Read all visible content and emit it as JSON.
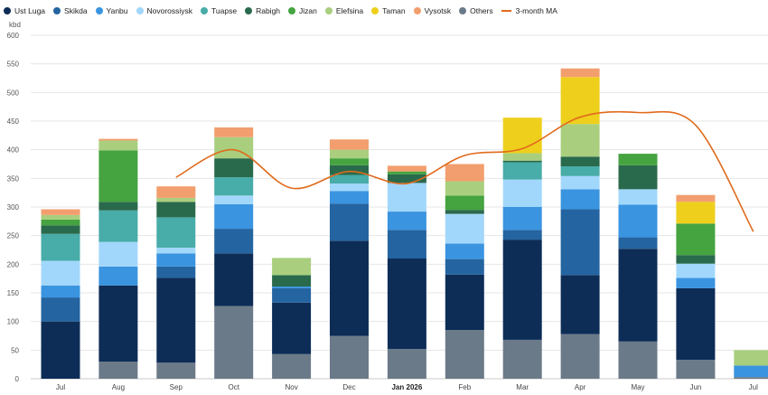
{
  "chart_data": {
    "type": "bar",
    "stacked": true,
    "ylabel": "kbd",
    "ylim": [
      0,
      600
    ],
    "yticks": [
      0,
      50,
      100,
      150,
      200,
      250,
      300,
      350,
      400,
      450,
      500,
      550,
      600
    ],
    "grid": true,
    "legend_position": "top-left",
    "categories": [
      "Jul",
      "Aug",
      "Sep",
      "Oct",
      "Nov",
      "Dec",
      "Jan 2026",
      "Feb",
      "Mar",
      "Apr",
      "May",
      "Jun",
      "Jul"
    ],
    "bold_categories": [
      "Jan 2026"
    ],
    "series": [
      {
        "name": "Others",
        "color": "#6b7a89",
        "values": [
          0,
          30,
          28,
          127,
          43,
          75,
          52,
          85,
          68,
          78,
          65,
          33,
          3
        ]
      },
      {
        "name": "Ust Luga",
        "color": "#0d2d57",
        "values": [
          100,
          133,
          148,
          92,
          90,
          166,
          158,
          97,
          175,
          103,
          162,
          125,
          0
        ]
      },
      {
        "name": "Skikda",
        "color": "#2464a0",
        "values": [
          42,
          0,
          20,
          43,
          25,
          65,
          50,
          27,
          17,
          115,
          20,
          0,
          0
        ]
      },
      {
        "name": "Yanbu",
        "color": "#3a94e0",
        "values": [
          21,
          33,
          23,
          43,
          3,
          22,
          32,
          27,
          40,
          35,
          57,
          18,
          20
        ]
      },
      {
        "name": "Novorossiysk",
        "color": "#a2d7fc",
        "values": [
          43,
          43,
          10,
          15,
          0,
          13,
          50,
          52,
          48,
          23,
          27,
          25,
          0
        ]
      },
      {
        "name": "Tuapse",
        "color": "#48aca8",
        "values": [
          47,
          55,
          53,
          32,
          0,
          15,
          0,
          0,
          30,
          17,
          0,
          0,
          0
        ]
      },
      {
        "name": "Rabigh",
        "color": "#2a6a4c",
        "values": [
          15,
          15,
          27,
          33,
          20,
          17,
          15,
          7,
          3,
          17,
          42,
          15,
          0
        ]
      },
      {
        "name": "Jizan",
        "color": "#45a340",
        "values": [
          10,
          90,
          0,
          0,
          0,
          12,
          5,
          25,
          0,
          0,
          20,
          55,
          0
        ]
      },
      {
        "name": "Elefsina",
        "color": "#a9cf7e",
        "values": [
          8,
          17,
          7,
          37,
          30,
          15,
          0,
          25,
          13,
          57,
          0,
          0,
          27
        ]
      },
      {
        "name": "Taman",
        "color": "#eecf1c",
        "values": [
          0,
          0,
          0,
          0,
          0,
          0,
          0,
          0,
          62,
          82,
          0,
          38,
          0
        ]
      },
      {
        "name": "Vysotsk",
        "color": "#f29e6e",
        "values": [
          10,
          3,
          20,
          17,
          0,
          18,
          10,
          30,
          0,
          15,
          0,
          12,
          0
        ]
      }
    ],
    "moving_average": {
      "name": "3-month MA",
      "color": "#e06a1c",
      "values": [
        null,
        null,
        352,
        400,
        333,
        362,
        341,
        390,
        402,
        457,
        465,
        443,
        257
      ]
    },
    "legend_order": [
      "Ust Luga",
      "Skikda",
      "Yanbu",
      "Novorossiysk",
      "Tuapse",
      "Rabigh",
      "Jizan",
      "Elefsina",
      "Taman",
      "Vysotsk",
      "Others",
      "3-month MA"
    ]
  }
}
